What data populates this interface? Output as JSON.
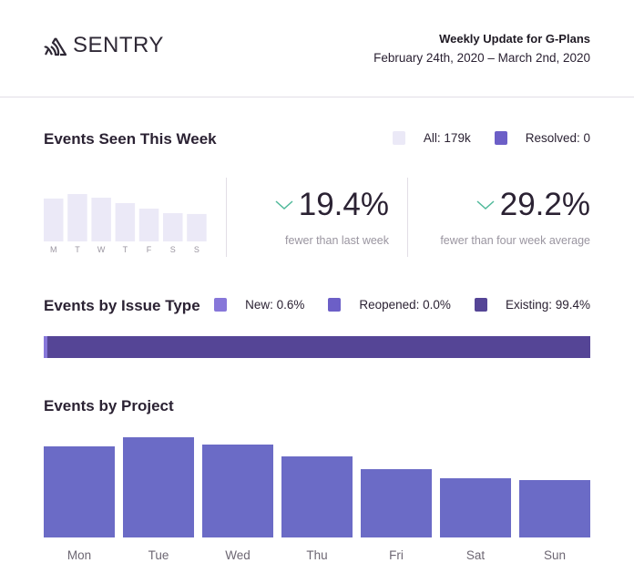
{
  "header": {
    "brand": "SENTRY",
    "title": "Weekly Update for G-Plans",
    "date_range": "February 24th, 2020 – March 2nd, 2020"
  },
  "events_week": {
    "title": "Events Seen This Week",
    "legend": [
      {
        "label": "All: 179k",
        "color": "#ebe9f7"
      },
      {
        "label": "Resolved: 0",
        "color": "#6c5fc7"
      }
    ],
    "days": [
      "M",
      "T",
      "W",
      "T",
      "F",
      "S",
      "S"
    ],
    "daily_all": [
      29.4,
      32.5,
      30.0,
      26.3,
      22.5,
      19.4,
      18.8
    ],
    "daily_resolved": [
      0,
      0,
      0,
      0,
      0,
      0,
      0
    ],
    "stats": [
      {
        "value": "19.4%",
        "label": "fewer than last week",
        "icon": "chevron-down-icon"
      },
      {
        "value": "29.2%",
        "label": "fewer than four week average",
        "icon": "chevron-down-icon"
      }
    ]
  },
  "issue_type": {
    "title": "Events by Issue Type",
    "segments": [
      {
        "label": "New: 0.6%",
        "pct": 0.6,
        "color": "#8777d9"
      },
      {
        "label": "Reopened: 0.0%",
        "pct": 0.0,
        "color": "#6c5fc7"
      },
      {
        "label": "Existing: 99.4%",
        "pct": 99.4,
        "color": "#554596"
      }
    ]
  },
  "project": {
    "title": "Events by Project",
    "days": [
      "Mon",
      "Tue",
      "Wed",
      "Thu",
      "Fri",
      "Sat",
      "Sun"
    ],
    "values": [
      100,
      110,
      102,
      89,
      75,
      65,
      63
    ],
    "color": "#6b6bc6"
  }
}
